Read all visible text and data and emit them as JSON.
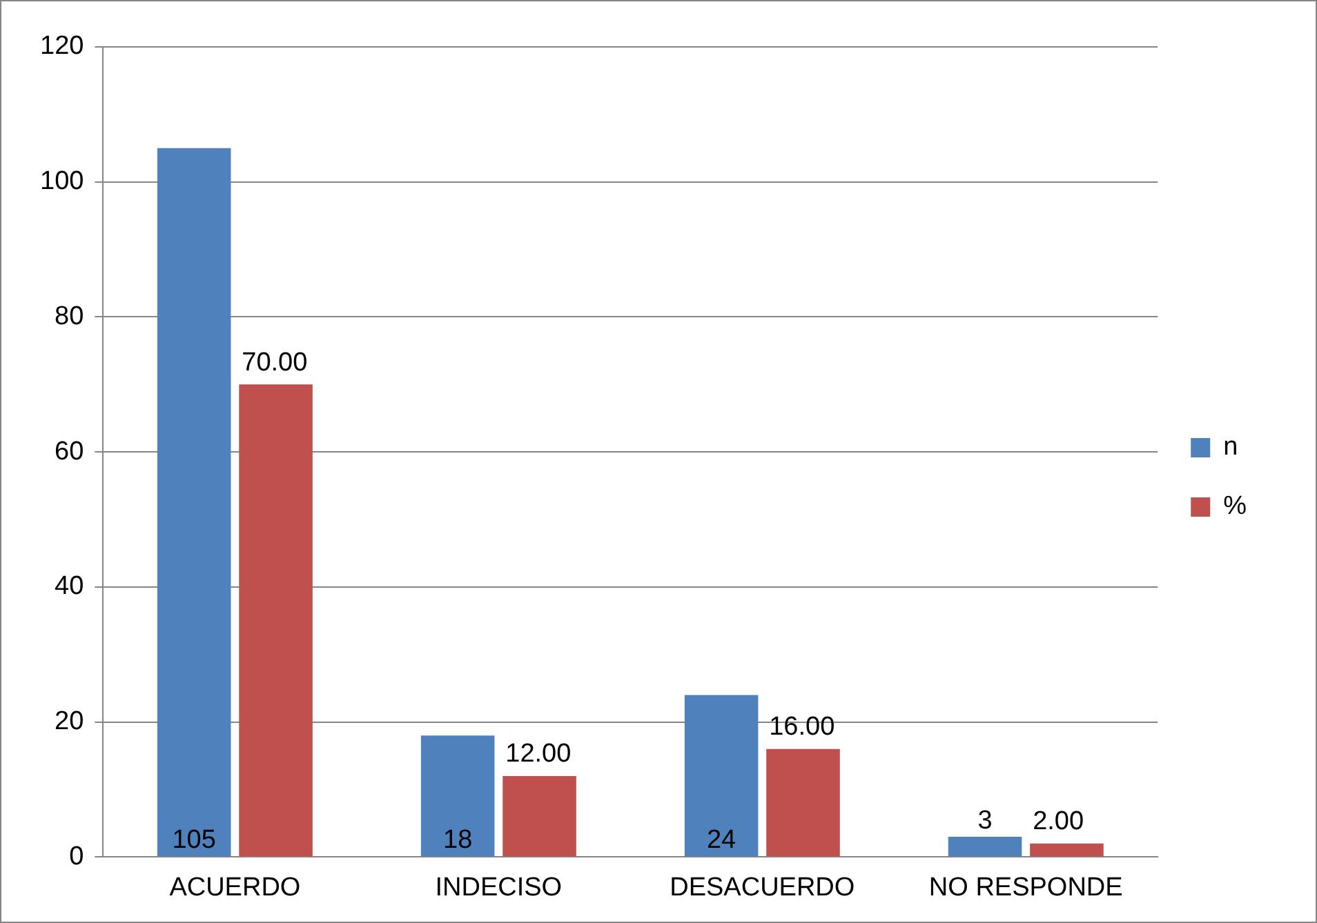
{
  "chart_data": {
    "type": "bar",
    "categories": [
      "ACUERDO",
      "INDECISO",
      "DESACUERDO",
      "NO RESPONDE"
    ],
    "series": [
      {
        "name": "n",
        "color": "#4f81bd",
        "values": [
          105,
          18,
          24,
          3
        ],
        "value_labels": [
          "105",
          "18",
          "24",
          "3"
        ]
      },
      {
        "name": "%",
        "color": "#c0504d",
        "values": [
          70,
          12,
          16,
          2
        ],
        "value_labels": [
          "70.00",
          "12.00",
          "16.00",
          "2.00"
        ]
      }
    ],
    "ylim": [
      0,
      120
    ],
    "yticks": [
      0,
      20,
      40,
      60,
      80,
      100,
      120
    ],
    "grid": "y",
    "legend": "right"
  }
}
